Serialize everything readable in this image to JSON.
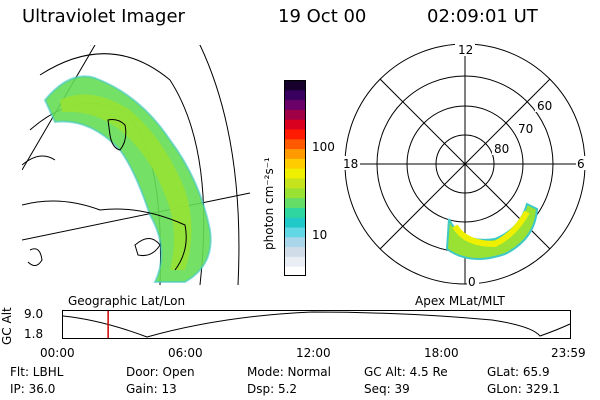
{
  "header": {
    "instrument": "Ultraviolet Imager",
    "date": "19 Oct 00",
    "time": "02:09:01 UT"
  },
  "colorbar": {
    "unit_label": "photon cm⁻²s⁻¹",
    "tick_100": "100",
    "tick_10": "10",
    "colors": [
      "#ffffff",
      "#e8eef4",
      "#d0dde8",
      "#a9d6ea",
      "#62d8e6",
      "#20c8c8",
      "#2fd6a0",
      "#66dd66",
      "#99e233",
      "#c6e41c",
      "#eef000",
      "#ffcc00",
      "#ff9a00",
      "#ff5a00",
      "#ff1a00",
      "#d8001e",
      "#a00046",
      "#6a0068",
      "#3a0060",
      "#18002c"
    ]
  },
  "left_map": {
    "label": "Geographic Lat/Lon"
  },
  "right_map": {
    "label": "Apex MLat/MLT",
    "mlt_12": "12",
    "mlt_18": "18",
    "mlt_6": "6",
    "mlt_0": "0",
    "lat_60": "60",
    "lat_70": "70",
    "lat_80": "80"
  },
  "timeline": {
    "y_title": "GC Alt",
    "y_top": "9.0",
    "y_bottom": "1.8",
    "x_ticks": [
      "00:00",
      "06:00",
      "12:00",
      "18:00",
      "23:59"
    ],
    "marker_fraction": 0.089
  },
  "info": {
    "flt": "Flt: LBHL",
    "ip": "IP: 36.0",
    "door": "Door: Open",
    "gain": "Gain: 13",
    "mode": "Mode: Normal",
    "dsp": "Dsp:    5.2",
    "gc_alt": "GC Alt: 4.5 Re",
    "seq": "Seq: 39",
    "glat": "GLat:  65.9",
    "glon": "GLon: 329.1"
  }
}
